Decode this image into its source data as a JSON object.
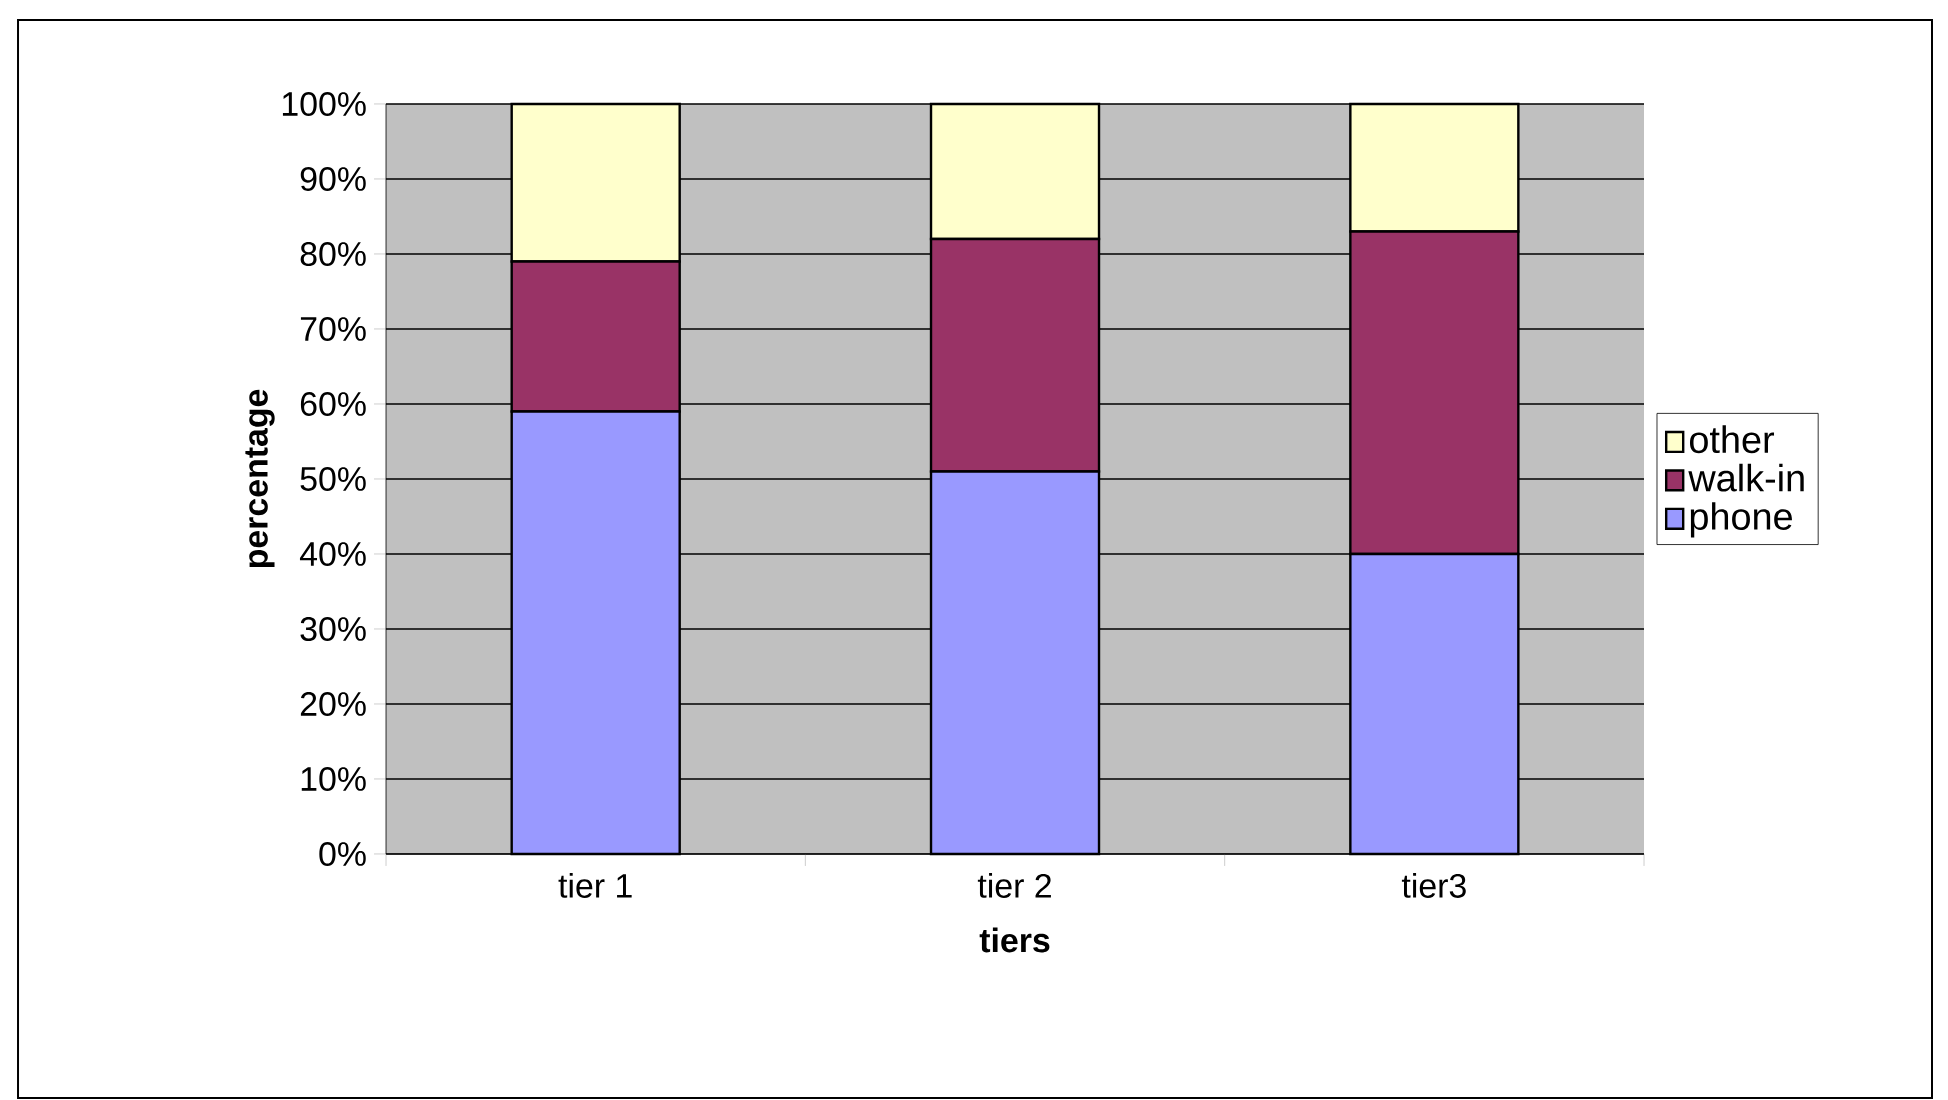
{
  "chart_data": {
    "type": "bar",
    "stacked": true,
    "xlabel": "tiers",
    "ylabel": "percentage",
    "categories": [
      "tier 1",
      "tier 2",
      "tier3"
    ],
    "series": [
      {
        "name": "phone",
        "color": "#9999ff",
        "values": [
          59,
          51,
          40
        ]
      },
      {
        "name": "walk-in",
        "color": "#993366",
        "values": [
          20,
          31,
          43
        ]
      },
      {
        "name": "other",
        "color": "#ffffcc",
        "values": [
          21,
          18,
          17
        ]
      }
    ],
    "ylim": [
      0,
      100
    ],
    "yticks": [
      {
        "value": 0,
        "label": "0%"
      },
      {
        "value": 10,
        "label": "10%"
      },
      {
        "value": 20,
        "label": "20%"
      },
      {
        "value": 30,
        "label": "30%"
      },
      {
        "value": 40,
        "label": "40%"
      },
      {
        "value": 50,
        "label": "50%"
      },
      {
        "value": 60,
        "label": "60%"
      },
      {
        "value": 70,
        "label": "70%"
      },
      {
        "value": 80,
        "label": "80%"
      },
      {
        "value": 90,
        "label": "90%"
      },
      {
        "value": 100,
        "label": "100%"
      }
    ],
    "grid": "y",
    "legend": "right"
  }
}
